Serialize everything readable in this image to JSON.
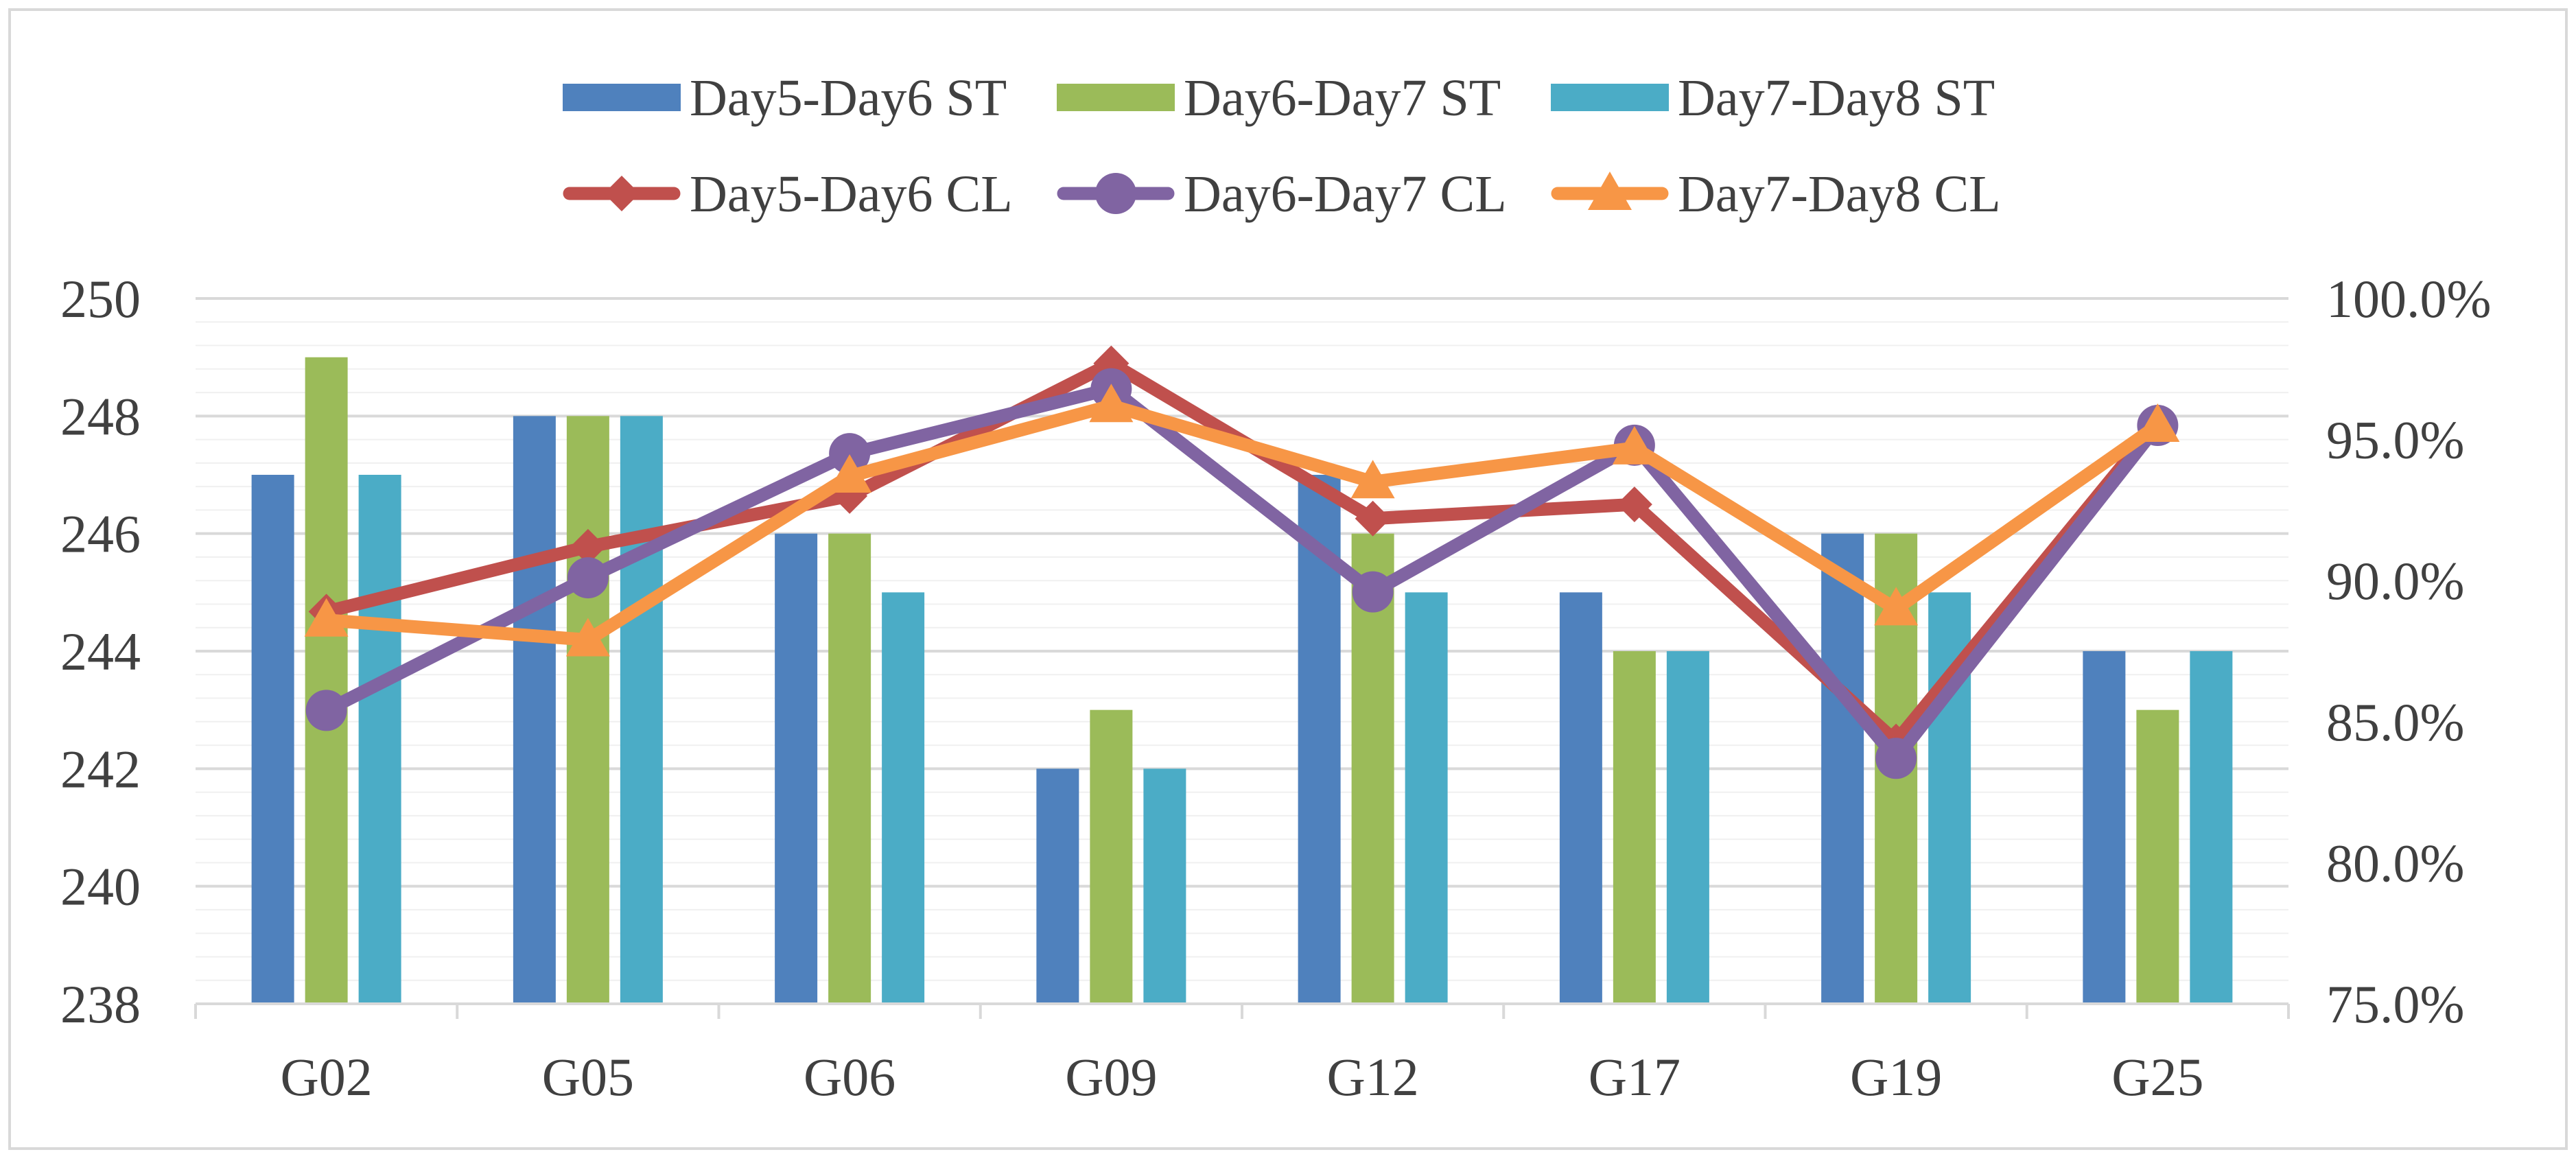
{
  "chart_data": {
    "type": "bar",
    "categories": [
      "G02",
      "G05",
      "G06",
      "G09",
      "G12",
      "G17",
      "G19",
      "G25"
    ],
    "left_axis": {
      "ylim": [
        238,
        250
      ],
      "ticks": [
        238,
        240,
        242,
        244,
        246,
        248,
        250
      ],
      "tick_labels": [
        "238",
        "240",
        "242",
        "244",
        "246",
        "248",
        "250"
      ]
    },
    "right_axis": {
      "ylim": [
        0.75,
        1.0
      ],
      "ticks": [
        0.75,
        0.8,
        0.85,
        0.9,
        0.95,
        1.0
      ],
      "tick_labels": [
        "75.0%",
        "80.0%",
        "85.0%",
        "90.0%",
        "95.0%",
        "100.0%"
      ]
    },
    "bar_series": [
      {
        "name": "Day5-Day6 ST",
        "color": "#4F81BD",
        "values": [
          247,
          248,
          246,
          242,
          247,
          245,
          246,
          244
        ]
      },
      {
        "name": "Day6-Day7 ST",
        "color": "#9BBB59",
        "values": [
          249,
          248,
          246,
          243,
          246,
          244,
          246,
          243
        ]
      },
      {
        "name": "Day7-Day8 ST",
        "color": "#4BACC6",
        "values": [
          247,
          248,
          245,
          242,
          245,
          244,
          245,
          244
        ]
      }
    ],
    "line_series": [
      {
        "name": "Day5-Day6 CL",
        "color": "#C0504D",
        "marker": "diamond",
        "values": [
          0.889,
          0.912,
          0.93,
          0.977,
          0.922,
          0.927,
          0.843,
          0.956
        ]
      },
      {
        "name": "Day6-Day7 CL",
        "color": "#8064A2",
        "marker": "circle",
        "values": [
          0.854,
          0.901,
          0.945,
          0.968,
          0.896,
          0.948,
          0.837,
          0.955
        ]
      },
      {
        "name": "Day7-Day8 CL",
        "color": "#F79646",
        "marker": "triangle",
        "values": [
          0.886,
          0.879,
          0.937,
          0.962,
          0.935,
          0.947,
          0.89,
          0.955
        ]
      }
    ],
    "legend_rows": [
      [
        "Day5-Day6 ST",
        "Day6-Day7 ST",
        "Day7-Day8 ST"
      ],
      [
        "Day5-Day6 CL",
        "Day6-Day7 CL",
        "Day7-Day8 CL"
      ]
    ],
    "legend_position": "top-center",
    "grid": true
  }
}
